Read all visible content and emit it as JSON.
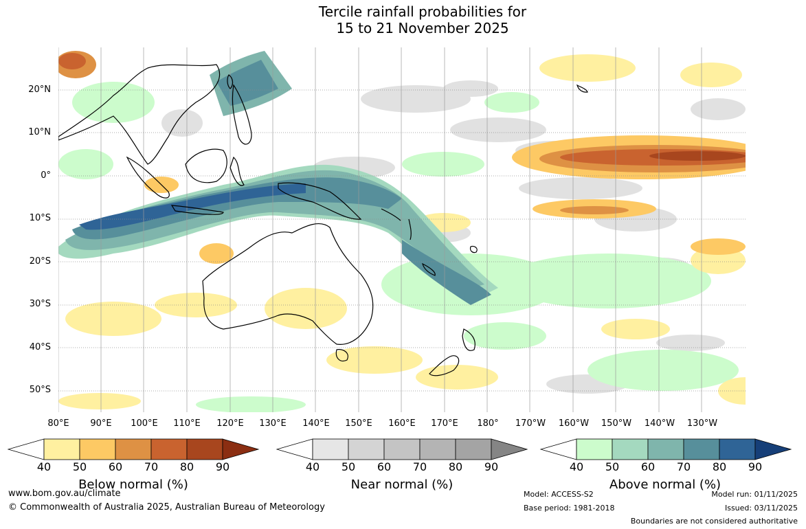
{
  "title": {
    "line1": "Tercile rainfall probabilities for",
    "line2": "15 to 21 November 2025"
  },
  "map": {
    "latitude_labels": [
      "20°N",
      "10°N",
      "0°",
      "10°S",
      "20°S",
      "30°S",
      "40°S",
      "50°S"
    ],
    "longitude_labels": [
      "80°E",
      "90°E",
      "100°E",
      "110°E",
      "120°E",
      "130°E",
      "140°E",
      "150°E",
      "160°E",
      "170°E",
      "180°",
      "170°W",
      "160°W",
      "150°W",
      "140°W",
      "130°W"
    ]
  },
  "legends": {
    "below": {
      "title": "Below normal (%)",
      "ticks": [
        "40",
        "50",
        "60",
        "70",
        "80",
        "90"
      ],
      "colors": [
        "#fff0a0",
        "#fdc964",
        "#de9144",
        "#c9632f",
        "#a8461e",
        "#8b2e12"
      ]
    },
    "near": {
      "title": "Near normal (%)",
      "ticks": [
        "40",
        "50",
        "60",
        "70",
        "80",
        "90"
      ],
      "colors": [
        "#e6e6e6",
        "#d4d4d4",
        "#c4c4c4",
        "#b4b4b4",
        "#a4a4a4",
        "#858585"
      ]
    },
    "above": {
      "title": "Above normal (%)",
      "ticks": [
        "40",
        "50",
        "60",
        "70",
        "80",
        "90"
      ],
      "colors": [
        "#ccfccc",
        "#a4d9bf",
        "#7fb5ac",
        "#578f9b",
        "#2f6496",
        "#163f78"
      ]
    }
  },
  "footer": {
    "website": "www.bom.gov.au/climate",
    "copyright": "© Commonwealth of Australia 2025, Australian Bureau of Meteorology",
    "model": "Model: ACCESS-S2",
    "base_period": "Base period: 1981-2018",
    "model_run": "Model run: 01/11/2025",
    "issued": "Issued: 03/11/2025",
    "disclaimer": "Boundaries are not considered authoritative"
  }
}
